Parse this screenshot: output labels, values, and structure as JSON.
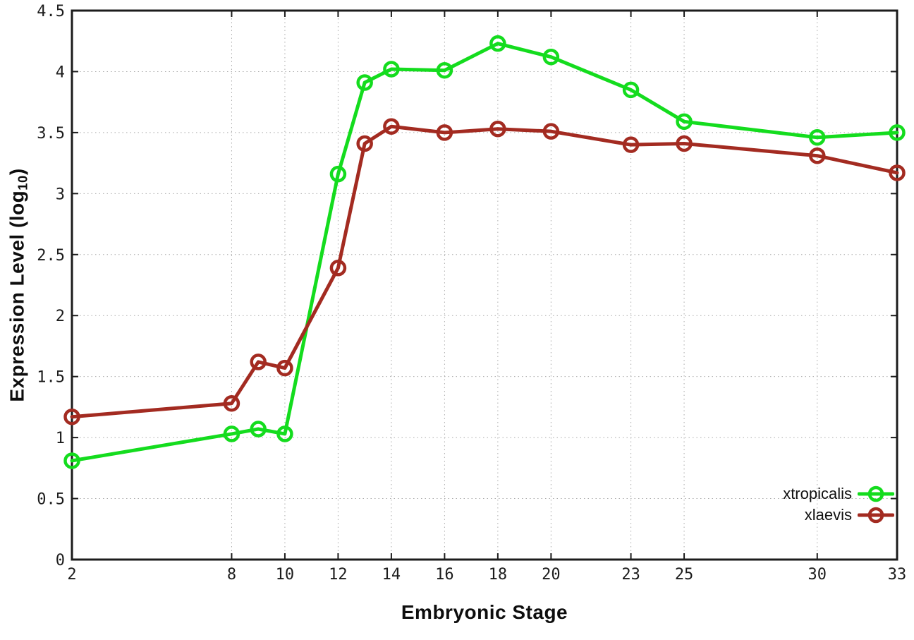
{
  "chart_data": {
    "type": "line",
    "title": "",
    "xlabel": "Embryonic Stage",
    "ylabel": {
      "text": "Expression Level (log",
      "subscript": "10",
      "suffix": ")"
    },
    "x": [
      2,
      8,
      9,
      10,
      12,
      13,
      14,
      16,
      18,
      20,
      23,
      25,
      30,
      33
    ],
    "series": [
      {
        "name": "xtropicalis",
        "color": "#14dc1e",
        "values": [
          0.81,
          1.03,
          1.07,
          1.03,
          3.16,
          3.91,
          4.02,
          4.01,
          4.23,
          4.12,
          3.85,
          3.59,
          3.46,
          3.5
        ]
      },
      {
        "name": "xlaevis",
        "color": "#a32b21",
        "values": [
          1.17,
          1.28,
          1.62,
          1.57,
          2.39,
          3.41,
          3.55,
          3.5,
          3.53,
          3.51,
          3.4,
          3.41,
          3.31,
          3.17
        ]
      }
    ],
    "xticks": [
      2,
      8,
      10,
      12,
      14,
      16,
      18,
      20,
      23,
      25,
      30,
      33
    ],
    "yticks": [
      0,
      0.5,
      1,
      1.5,
      2,
      2.5,
      3,
      3.5,
      4,
      4.5
    ],
    "xlim": [
      2,
      33
    ],
    "ylim": [
      0,
      4.5
    ],
    "grid": true,
    "legend_position": "inside-bottom-right",
    "marker": "open-circle"
  },
  "colors": {
    "axis": "#1c1c1c",
    "grid": "#aaaaaa",
    "background": "#ffffff"
  }
}
